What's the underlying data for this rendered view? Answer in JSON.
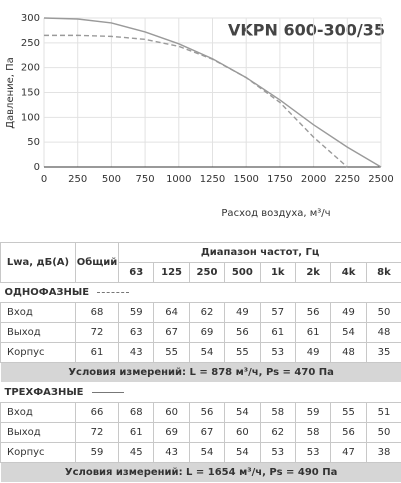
{
  "chart_data": {
    "type": "line",
    "title": "VKPN 600-300/35",
    "x_label": "Расход воздуха, м³/ч",
    "y_label": "Давление, Па",
    "x": [
      0,
      250,
      500,
      750,
      1000,
      1250,
      1500,
      1750,
      2000,
      2250,
      2500
    ],
    "series": [
      {
        "color": "#9a9a9a",
        "dash": false,
        "values": [
          300,
          298,
          290,
          272,
          248,
          218,
          180,
          135,
          85,
          40,
          0
        ]
      },
      {
        "color": "#9a9a9a",
        "dash": true,
        "values": [
          265,
          265,
          263,
          257,
          243,
          217,
          180,
          130,
          60,
          0,
          null
        ]
      }
    ],
    "xlim": [
      0,
      2500
    ],
    "xticks": [
      0,
      250,
      500,
      750,
      1000,
      1250,
      1500,
      1750,
      2000,
      2250,
      2500
    ],
    "ylim": [
      0,
      300
    ],
    "yticks": [
      0,
      50,
      100,
      150,
      200,
      250,
      300
    ],
    "grid": true
  },
  "table": {
    "label_header": "Lwa, дБ(A)",
    "total_header": "Общий",
    "range_header": "Диапазон частот, Гц",
    "frequencies": [
      "63",
      "125",
      "250",
      "500",
      "1k",
      "2k",
      "4k",
      "8k"
    ],
    "sections": [
      {
        "title": "ОДНОФАЗНЫЕ",
        "rows": [
          [
            "Вход",
            68,
            59,
            64,
            62,
            49,
            57,
            56,
            49,
            50
          ],
          [
            "Выход",
            72,
            63,
            67,
            69,
            56,
            61,
            61,
            54,
            48
          ],
          [
            "Корпус",
            61,
            43,
            55,
            54,
            55,
            53,
            49,
            48,
            35
          ]
        ],
        "conditions": "Условия измерений: L = 878 м³/ч, Ps = 470 Па"
      },
      {
        "title": "ТРЕХФАЗНЫЕ",
        "rows": [
          [
            "Вход",
            66,
            68,
            60,
            56,
            54,
            58,
            59,
            55,
            51
          ],
          [
            "Выход",
            72,
            61,
            69,
            67,
            60,
            62,
            58,
            56,
            50
          ],
          [
            "Корпус",
            59,
            45,
            43,
            54,
            54,
            53,
            53,
            47,
            38
          ]
        ],
        "conditions": "Условия измерений: L = 1654 м³/ч, Ps = 490 Па"
      }
    ]
  }
}
